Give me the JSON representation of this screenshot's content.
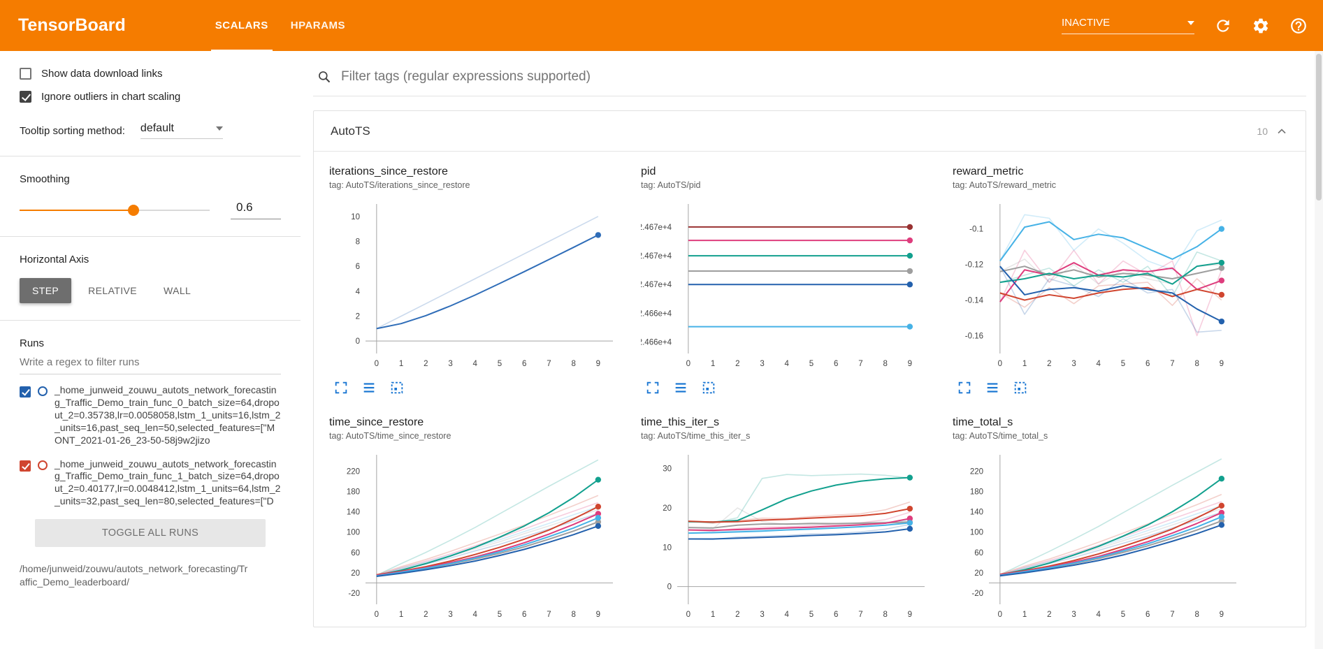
{
  "colors": {
    "header": "#f57c00",
    "icon_blue": "#1976d2",
    "axis": "#9e9e9e"
  },
  "header": {
    "logo": "TensorBoard",
    "tabs": [
      {
        "label": "SCALARS",
        "active": true
      },
      {
        "label": "HPARAMS",
        "active": false
      }
    ],
    "status": "INACTIVE"
  },
  "sidebar": {
    "checkboxes": [
      {
        "label": "Show data download links",
        "checked": false
      },
      {
        "label": "Ignore outliers in chart scaling",
        "checked": true
      }
    ],
    "tooltip_sort": {
      "label": "Tooltip sorting method:",
      "value": "default"
    },
    "smoothing": {
      "label": "Smoothing",
      "value": "0.6",
      "percent": 60
    },
    "haxis": {
      "label": "Horizontal Axis",
      "options": [
        "STEP",
        "RELATIVE",
        "WALL"
      ],
      "selected": "STEP"
    },
    "runs": {
      "label": "Runs",
      "filter_placeholder": "Write a regex to filter runs",
      "items": [
        {
          "color": "#2361ad",
          "checked": true,
          "name": "_home_junweid_zouwu_autots_network_forecasting_Traffic_Demo_train_func_0_batch_size=64,dropout_2=0.35738,lr=0.0058058,lstm_1_units=16,lstm_2_units=16,past_seq_len=50,selected_features=[\"MONT_2021-01-26_23-50-58j9w2jizo"
        },
        {
          "color": "#d0452f",
          "checked": true,
          "name": "_home_junweid_zouwu_autots_network_forecasting_Traffic_Demo_train_func_1_batch_size=64,dropout_2=0.40177,lr=0.0048412,lstm_1_units=64,lstm_2_units=32,past_seq_len=80,selected_features=[\"D"
        }
      ],
      "toggle_all": "TOGGLE ALL RUNS",
      "logdir": "/home/junweid/zouwu/autots_network_forecasting/Traffic_Demo_leaderboard/"
    }
  },
  "main": {
    "filter_placeholder": "Filter tags (regular expressions supported)",
    "section": {
      "title": "AutoTS",
      "count": "10"
    }
  },
  "ui_icons": [
    "search-icon",
    "refresh-icon",
    "settings-icon",
    "help-icon",
    "chevron-down-icon",
    "chevron-up-icon",
    "expand-icon",
    "data-table-icon",
    "fit-domain-icon"
  ],
  "chart_data": [
    {
      "type": "line",
      "title": "iterations_since_restore",
      "tag_line": "tag: AutoTS/iterations_since_restore",
      "x": [
        0,
        1,
        2,
        3,
        4,
        5,
        6,
        7,
        8,
        9
      ],
      "ylim": [
        -1,
        11
      ],
      "yticks": [
        0,
        2,
        4,
        6,
        8,
        10
      ],
      "zero_line": true,
      "series": [
        {
          "name": "blue",
          "color": "#2f6db8",
          "values": [
            1,
            1.4,
            2.04,
            2.82,
            3.69,
            4.62,
            5.57,
            6.54,
            7.52,
            8.51
          ],
          "raw": [
            1,
            2,
            3,
            4,
            5,
            6,
            7,
            8,
            9,
            10
          ],
          "dot": true
        }
      ]
    },
    {
      "type": "line",
      "title": "pid",
      "tag_line": "tag: AutoTS/pid",
      "x": [
        0,
        1,
        2,
        3,
        4,
        5,
        6,
        7,
        8,
        9
      ],
      "ylim": [
        24660.8,
        24676.4
      ],
      "zero_line": false,
      "yticks": [
        {
          "v": 24674,
          "label": "2.467e+4"
        },
        {
          "v": 24671,
          "label": "2.467e+4"
        },
        {
          "v": 24668,
          "label": "2.467e+4"
        },
        {
          "v": 24665,
          "label": "2.466e+4"
        },
        {
          "v": 24662,
          "label": "2.466e+4"
        }
      ],
      "series": [
        {
          "name": "maroon",
          "color": "#993232",
          "flat": 24674,
          "dot": true
        },
        {
          "name": "pink",
          "color": "#de3d7d",
          "flat": 24672.6,
          "dot": true
        },
        {
          "name": "teal",
          "color": "#12a08e",
          "flat": 24671,
          "dot": true
        },
        {
          "name": "gray",
          "color": "#9e9e9e",
          "flat": 24669.4,
          "dot": true
        },
        {
          "name": "blue",
          "color": "#2361ad",
          "flat": 24668,
          "dot": true
        },
        {
          "name": "sky",
          "color": "#46b2e6",
          "flat": 24663.6,
          "dot": true
        }
      ]
    },
    {
      "type": "line",
      "title": "reward_metric",
      "tag_line": "tag: AutoTS/reward_metric",
      "x": [
        0,
        1,
        2,
        3,
        4,
        5,
        6,
        7,
        8,
        9
      ],
      "ylim": [
        -0.17,
        -0.086
      ],
      "yticks": [
        -0.1,
        -0.12,
        -0.14,
        -0.16
      ],
      "zero_line": false,
      "series": [
        {
          "name": "pink",
          "color": "#de3d7d",
          "values": [
            -0.141,
            -0.123,
            -0.126,
            -0.119,
            -0.126,
            -0.123,
            -0.124,
            -0.122,
            -0.134,
            -0.129
          ],
          "raw": [
            -0.141,
            -0.112,
            -0.13,
            -0.112,
            -0.131,
            -0.118,
            -0.126,
            -0.118,
            -0.16,
            -0.123
          ],
          "dot": true
        },
        {
          "name": "gray",
          "color": "#9e9e9e",
          "values": [
            -0.124,
            -0.121,
            -0.126,
            -0.123,
            -0.127,
            -0.125,
            -0.126,
            -0.128,
            -0.125,
            -0.122
          ],
          "raw": [
            -0.124,
            -0.117,
            -0.13,
            -0.12,
            -0.131,
            -0.123,
            -0.128,
            -0.131,
            -0.121,
            -0.12
          ],
          "dot": true
        },
        {
          "name": "teal",
          "color": "#12a08e",
          "values": [
            -0.13,
            -0.128,
            -0.125,
            -0.128,
            -0.126,
            -0.127,
            -0.125,
            -0.131,
            -0.121,
            -0.119
          ],
          "raw": [
            -0.13,
            -0.126,
            -0.122,
            -0.132,
            -0.123,
            -0.13,
            -0.121,
            -0.138,
            -0.113,
            -0.118
          ],
          "dot": true
        },
        {
          "name": "red",
          "color": "#d0452f",
          "values": [
            -0.136,
            -0.14,
            -0.137,
            -0.139,
            -0.136,
            -0.134,
            -0.133,
            -0.138,
            -0.134,
            -0.137
          ],
          "raw": [
            -0.136,
            -0.144,
            -0.133,
            -0.142,
            -0.132,
            -0.131,
            -0.13,
            -0.143,
            -0.128,
            -0.14
          ],
          "dot": true
        },
        {
          "name": "blue",
          "color": "#2361ad",
          "values": [
            -0.121,
            -0.137,
            -0.134,
            -0.133,
            -0.135,
            -0.132,
            -0.134,
            -0.136,
            -0.145,
            -0.152
          ],
          "raw": [
            -0.121,
            -0.148,
            -0.128,
            -0.132,
            -0.138,
            -0.128,
            -0.136,
            -0.134,
            -0.158,
            -0.157
          ],
          "dot": true
        },
        {
          "name": "sky",
          "color": "#46b2e6",
          "values": [
            -0.118,
            -0.099,
            -0.096,
            -0.106,
            -0.103,
            -0.105,
            -0.111,
            -0.117,
            -0.11,
            -0.1
          ],
          "raw": [
            -0.118,
            -0.092,
            -0.094,
            -0.112,
            -0.1,
            -0.108,
            -0.118,
            -0.123,
            -0.101,
            -0.095
          ],
          "dot": true
        }
      ]
    },
    {
      "type": "line",
      "title": "time_since_restore",
      "tag_line": "tag: AutoTS/time_since_restore",
      "x": [
        0,
        1,
        2,
        3,
        4,
        5,
        6,
        7,
        8,
        9
      ],
      "ylim": [
        -42,
        252
      ],
      "yticks": [
        -20,
        20,
        60,
        100,
        140,
        180,
        220
      ],
      "zero_line": true,
      "series": [
        {
          "name": "gray",
          "color": "#9e9e9e",
          "values": [
            15,
            21,
            28,
            37,
            47,
            58,
            71,
            86,
            102,
            120
          ],
          "raw": [
            15,
            28,
            40,
            53,
            67,
            81,
            97,
            112,
            128,
            144
          ],
          "dot": true
        },
        {
          "name": "teal",
          "color": "#12a08e",
          "values": [
            15,
            25,
            38,
            53,
            70,
            90,
            112,
            138,
            168,
            203
          ],
          "raw": [
            15,
            38,
            60,
            84,
            109,
            136,
            163,
            190,
            216,
            242
          ],
          "dot": true
        },
        {
          "name": "red",
          "color": "#d0452f",
          "values": [
            16,
            23,
            32,
            43,
            56,
            70,
            86,
            104,
            126,
            150
          ],
          "raw": [
            16,
            32,
            46,
            62,
            79,
            96,
            114,
            133,
            152,
            172
          ],
          "dot": true
        },
        {
          "name": "pink",
          "color": "#de3d7d",
          "values": [
            15,
            22,
            30,
            40,
            51,
            64,
            79,
            96,
            115,
            136
          ],
          "raw": [
            15,
            30,
            43,
            57,
            73,
            89,
            106,
            124,
            141,
            158
          ],
          "dot": true
        },
        {
          "name": "sky",
          "color": "#46b2e6",
          "values": [
            14,
            21,
            29,
            38,
            49,
            61,
            75,
            91,
            108,
            128
          ],
          "raw": [
            14,
            29,
            41,
            55,
            70,
            85,
            101,
            117,
            134,
            150
          ],
          "dot": true
        },
        {
          "name": "blue",
          "color": "#2361ad",
          "values": [
            13,
            19,
            26,
            34,
            43,
            54,
            66,
            80,
            95,
            112
          ],
          "raw": [
            13,
            26,
            37,
            49,
            63,
            76,
            91,
            106,
            121,
            137
          ],
          "dot": true
        }
      ]
    },
    {
      "type": "line",
      "title": "time_this_iter_s",
      "tag_line": "tag: AutoTS/time_this_iter_s",
      "x": [
        0,
        1,
        2,
        3,
        4,
        5,
        6,
        7,
        8,
        9
      ],
      "ylim": [
        -4.5,
        33.5
      ],
      "yticks": [
        0,
        10,
        20,
        30
      ],
      "zero_line": true,
      "series": [
        {
          "name": "gray",
          "color": "#9e9e9e",
          "values": [
            15.0,
            14.9,
            15.6,
            15.9,
            15.9,
            16.0,
            16.0,
            16.1,
            16.2,
            16.4
          ],
          "raw": [
            15.0,
            14.7,
            20.0,
            16.5,
            15.8,
            16.2,
            16.0,
            16.3,
            16.4,
            16.6
          ],
          "dot": true
        },
        {
          "name": "teal",
          "color": "#12a08e",
          "values": [
            16.5,
            16.4,
            16.8,
            19.5,
            22.3,
            24.3,
            25.8,
            26.8,
            27.4,
            27.7
          ],
          "raw": [
            16.5,
            16.2,
            17.5,
            27.5,
            28.5,
            28.2,
            28.4,
            28.6,
            28.3,
            27.6
          ],
          "dot": true
        },
        {
          "name": "red",
          "color": "#d0452f",
          "values": [
            16.6,
            16.4,
            16.5,
            16.9,
            17.1,
            17.4,
            17.7,
            18.0,
            18.6,
            19.8
          ],
          "raw": [
            16.6,
            16.1,
            16.8,
            17.4,
            17.3,
            17.8,
            18.2,
            18.5,
            19.5,
            21.5
          ],
          "dot": true
        },
        {
          "name": "pink",
          "color": "#de3d7d",
          "values": [
            14.4,
            14.3,
            14.5,
            14.7,
            14.9,
            15.1,
            15.4,
            15.7,
            16.1,
            17.3
          ],
          "raw": [
            14.4,
            14.1,
            14.8,
            15.1,
            15.2,
            15.5,
            15.8,
            16.2,
            17.0,
            18.9
          ],
          "dot": true
        },
        {
          "name": "sky",
          "color": "#46b2e6",
          "values": [
            13.6,
            13.7,
            13.9,
            14.1,
            14.4,
            14.6,
            14.9,
            15.2,
            15.6,
            16.2
          ],
          "raw": [
            13.6,
            13.9,
            14.2,
            14.4,
            14.8,
            14.9,
            15.3,
            15.6,
            16.2,
            17.0
          ],
          "dot": true
        },
        {
          "name": "blue",
          "color": "#2361ad",
          "values": [
            12.1,
            12.1,
            12.3,
            12.5,
            12.7,
            13.0,
            13.2,
            13.5,
            13.9,
            14.7
          ],
          "raw": [
            12.1,
            12.0,
            12.6,
            12.8,
            13.0,
            13.4,
            13.5,
            13.9,
            14.6,
            15.8
          ],
          "dot": true
        }
      ]
    },
    {
      "type": "line",
      "title": "time_total_s",
      "tag_line": "tag: AutoTS/time_total_s",
      "x": [
        0,
        1,
        2,
        3,
        4,
        5,
        6,
        7,
        8,
        9
      ],
      "ylim": [
        -42,
        252
      ],
      "yticks": [
        -20,
        20,
        60,
        100,
        140,
        180,
        220
      ],
      "zero_line": true,
      "series": [
        {
          "name": "gray",
          "color": "#9e9e9e",
          "values": [
            15,
            21,
            29,
            38,
            48,
            60,
            73,
            88,
            104,
            122
          ],
          "raw": [
            15,
            29,
            41,
            54,
            68,
            83,
            98,
            114,
            130,
            146
          ],
          "dot": true
        },
        {
          "name": "teal",
          "color": "#12a08e",
          "values": [
            16,
            26,
            39,
            55,
            72,
            92,
            114,
            140,
            170,
            205
          ],
          "raw": [
            16,
            39,
            62,
            86,
            111,
            138,
            165,
            192,
            218,
            244
          ],
          "dot": true
        },
        {
          "name": "red",
          "color": "#d0452f",
          "values": [
            17,
            24,
            33,
            44,
            57,
            72,
            88,
            106,
            128,
            152
          ],
          "raw": [
            17,
            33,
            47,
            63,
            80,
            98,
            116,
            135,
            154,
            174
          ],
          "dot": true
        },
        {
          "name": "pink",
          "color": "#de3d7d",
          "values": [
            16,
            23,
            31,
            41,
            52,
            66,
            81,
            98,
            117,
            138
          ],
          "raw": [
            16,
            31,
            44,
            58,
            74,
            91,
            108,
            126,
            143,
            160
          ],
          "dot": true
        },
        {
          "name": "sky",
          "color": "#46b2e6",
          "values": [
            15,
            22,
            30,
            39,
            50,
            63,
            77,
            93,
            110,
            130
          ],
          "raw": [
            15,
            30,
            42,
            56,
            71,
            87,
            103,
            119,
            136,
            152
          ],
          "dot": true
        },
        {
          "name": "blue",
          "color": "#2361ad",
          "values": [
            14,
            20,
            27,
            35,
            44,
            55,
            68,
            82,
            97,
            114
          ],
          "raw": [
            14,
            27,
            38,
            50,
            64,
            78,
            92,
            108,
            123,
            139
          ],
          "dot": true
        }
      ]
    }
  ]
}
